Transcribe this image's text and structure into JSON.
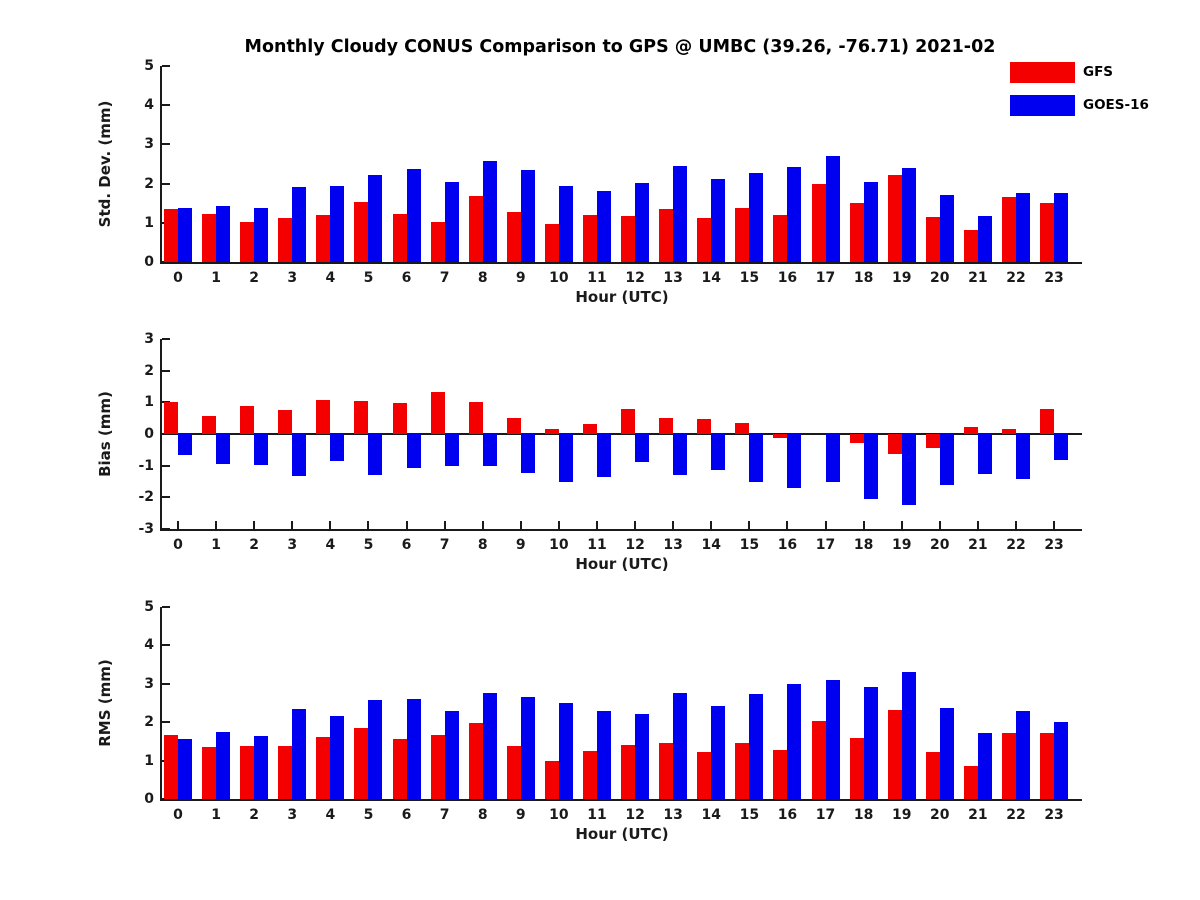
{
  "title": "Monthly Cloudy CONUS Comparison to GPS @ UMBC (39.26, -76.71) 2021-02",
  "colors": {
    "gfs": "#f40000",
    "goes16": "#0000f0",
    "axis": "#1a1a1a",
    "background": "#ffffff"
  },
  "legend": [
    {
      "label": "GFS",
      "color": "#f40000"
    },
    {
      "label": "GOES-16",
      "color": "#0000f0"
    }
  ],
  "chart_data": [
    {
      "type": "bar",
      "ylabel": "Std. Dev. (mm)",
      "xlabel": "Hour (UTC)",
      "ylim": [
        0,
        5
      ],
      "yticks": [
        0,
        1,
        2,
        3,
        4,
        5
      ],
      "grid": false,
      "legend_position": "top-right-outside",
      "categories": [
        0,
        1,
        2,
        3,
        4,
        5,
        6,
        7,
        8,
        9,
        10,
        11,
        12,
        13,
        14,
        15,
        16,
        17,
        18,
        19,
        20,
        21,
        22,
        23
      ],
      "series": [
        {
          "name": "GFS",
          "values": [
            1.35,
            1.22,
            1.03,
            1.13,
            1.2,
            1.52,
            1.23,
            1.02,
            1.69,
            1.28,
            0.98,
            1.19,
            1.17,
            1.35,
            1.13,
            1.38,
            1.21,
            2.0,
            1.51,
            2.21,
            1.14,
            0.82,
            1.66,
            1.5
          ]
        },
        {
          "name": "GOES-16",
          "values": [
            1.39,
            1.44,
            1.37,
            1.92,
            1.95,
            2.23,
            2.36,
            2.03,
            2.57,
            2.34,
            1.94,
            1.82,
            2.01,
            2.46,
            2.13,
            2.27,
            2.43,
            2.7,
            2.05,
            2.41,
            1.72,
            1.17,
            1.76,
            1.76
          ]
        }
      ]
    },
    {
      "type": "bar",
      "ylabel": "Bias (mm)",
      "xlabel": "Hour (UTC)",
      "ylim": [
        -3,
        3
      ],
      "yticks": [
        -3,
        -2,
        -1,
        0,
        1,
        2,
        3
      ],
      "grid": false,
      "categories": [
        0,
        1,
        2,
        3,
        4,
        5,
        6,
        7,
        8,
        9,
        10,
        11,
        12,
        13,
        14,
        15,
        16,
        17,
        18,
        19,
        20,
        21,
        22,
        23
      ],
      "series": [
        {
          "name": "GFS",
          "values": [
            1.0,
            0.57,
            0.9,
            0.77,
            1.08,
            1.05,
            0.98,
            1.33,
            1.02,
            0.5,
            0.17,
            0.32,
            0.8,
            0.49,
            0.47,
            0.34,
            -0.14,
            0.0,
            -0.29,
            -0.63,
            -0.44,
            0.22,
            0.16,
            0.79
          ]
        },
        {
          "name": "GOES-16",
          "values": [
            -0.66,
            -0.95,
            -0.98,
            -1.33,
            -0.85,
            -1.28,
            -1.06,
            -1.01,
            -1.02,
            -1.24,
            -1.53,
            -1.37,
            -0.88,
            -1.29,
            -1.15,
            -1.51,
            -1.71,
            -1.53,
            -2.05,
            -2.24,
            -1.6,
            -1.26,
            -1.41,
            -0.83
          ]
        }
      ]
    },
    {
      "type": "bar",
      "ylabel": "RMS (mm)",
      "xlabel": "Hour (UTC)",
      "ylim": [
        0,
        5
      ],
      "yticks": [
        0,
        1,
        2,
        3,
        4,
        5
      ],
      "grid": false,
      "categories": [
        0,
        1,
        2,
        3,
        4,
        5,
        6,
        7,
        8,
        9,
        10,
        11,
        12,
        13,
        14,
        15,
        16,
        17,
        18,
        19,
        20,
        21,
        22,
        23
      ],
      "series": [
        {
          "name": "GFS",
          "values": [
            1.67,
            1.36,
            1.38,
            1.38,
            1.61,
            1.86,
            1.56,
            1.66,
            1.97,
            1.38,
            1.0,
            1.26,
            1.4,
            1.46,
            1.23,
            1.46,
            1.27,
            2.03,
            1.58,
            2.33,
            1.23,
            0.86,
            1.71,
            1.73
          ]
        },
        {
          "name": "GOES-16",
          "values": [
            1.56,
            1.75,
            1.65,
            2.34,
            2.15,
            2.57,
            2.6,
            2.29,
            2.75,
            2.65,
            2.49,
            2.28,
            2.21,
            2.77,
            2.41,
            2.74,
            2.99,
            3.11,
            2.91,
            3.32,
            2.36,
            1.71,
            2.28,
            2.01
          ]
        }
      ]
    }
  ]
}
